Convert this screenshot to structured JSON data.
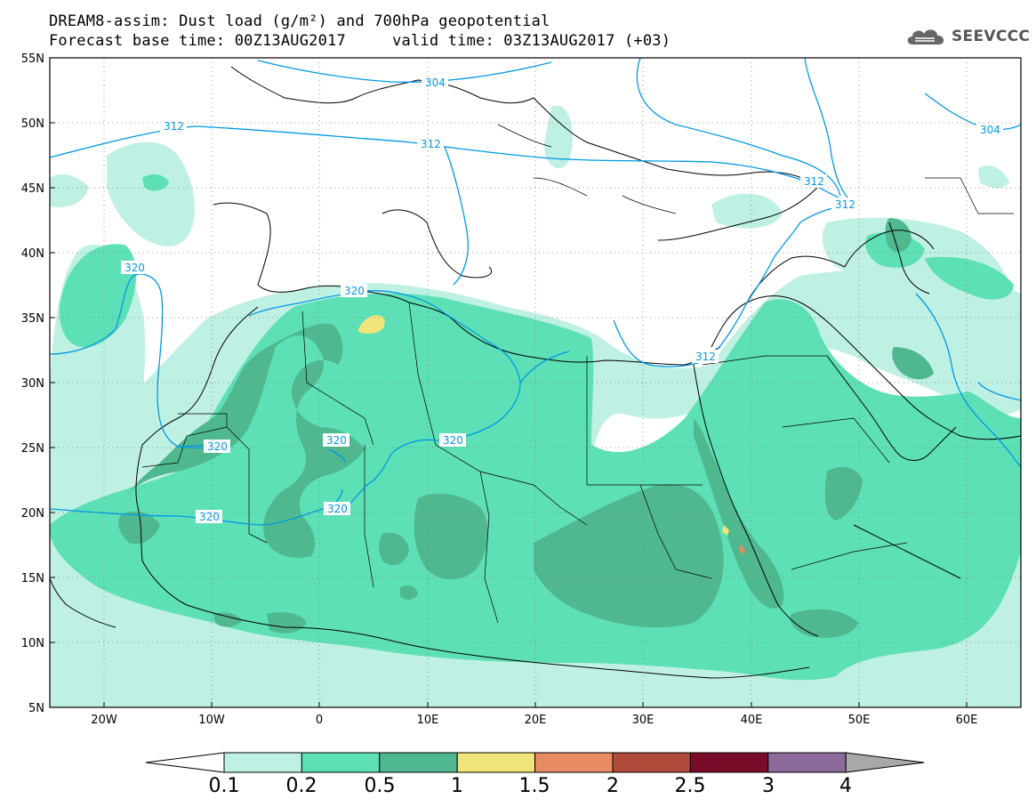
{
  "header": {
    "title_line1": "DREAM8-assim: Dust load (g/m²) and 700hPa geopotential",
    "title_line2": "Forecast base time: 00Z13AUG2017     valid time: 03Z13AUG2017 (+03)"
  },
  "logo": {
    "text": "SEEVCCC",
    "icon": "cloud-icon"
  },
  "map": {
    "lon_range": [
      -25,
      65
    ],
    "lat_range": [
      5,
      55
    ],
    "lat_labels": [
      "55N",
      "50N",
      "45N",
      "40N",
      "35N",
      "30N",
      "25N",
      "20N",
      "15N",
      "10N",
      "5N"
    ],
    "lon_labels": [
      "20W",
      "10W",
      "0",
      "10E",
      "20E",
      "30E",
      "40E",
      "50E",
      "60E"
    ],
    "contour_labels": [
      "304",
      "304",
      "312",
      "312",
      "312",
      "312",
      "320",
      "320",
      "320",
      "320",
      "320",
      "320",
      "312"
    ]
  },
  "colorbar": {
    "levels": [
      "0.1",
      "0.2",
      "0.5",
      "1",
      "1.5",
      "2",
      "2.5",
      "3",
      "4"
    ],
    "colors": [
      "#ffffff",
      "#bff0e4",
      "#5ee0b6",
      "#4fb88f",
      "#f0e47a",
      "#e88a62",
      "#b14a3a",
      "#7a0c2a",
      "#8c6a9c",
      "#a8a8a8"
    ]
  },
  "colors": {
    "contour": "#0099e6",
    "dust_01": "#bff0e4",
    "dust_02": "#5ee0b6",
    "dust_05": "#4fb88f",
    "dust_1": "#f0e47a",
    "dust_15": "#e88a62"
  }
}
